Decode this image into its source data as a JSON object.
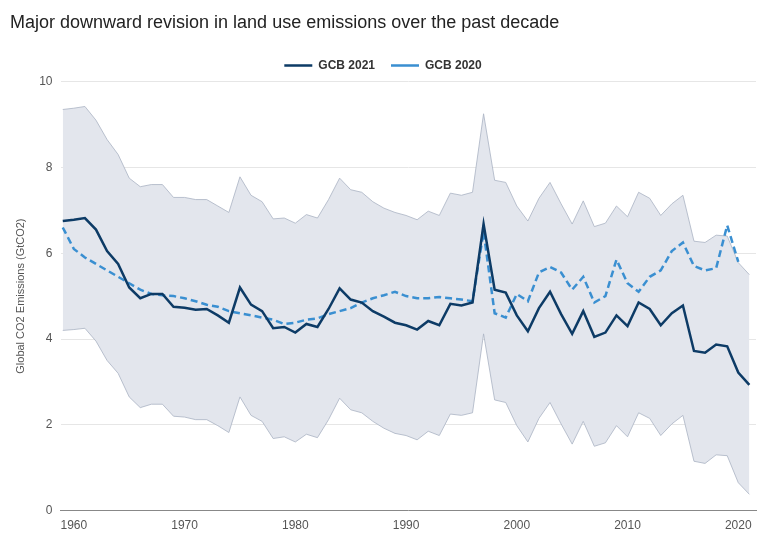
{
  "chart_data": {
    "type": "line",
    "title": "Major downward revision in land use emissions over the past decade",
    "y_label": "Global CO2 Emissions (GtCO2)",
    "x": [
      1959,
      1960,
      1961,
      1962,
      1963,
      1964,
      1965,
      1966,
      1967,
      1968,
      1969,
      1970,
      1971,
      1972,
      1973,
      1974,
      1975,
      1976,
      1977,
      1978,
      1979,
      1980,
      1981,
      1982,
      1983,
      1984,
      1985,
      1986,
      1987,
      1988,
      1989,
      1990,
      1991,
      1992,
      1993,
      1994,
      1995,
      1996,
      1997,
      1998,
      1999,
      2000,
      2001,
      2002,
      2003,
      2004,
      2005,
      2006,
      2007,
      2008,
      2009,
      2010,
      2011,
      2012,
      2013,
      2014,
      2015,
      2016,
      2017,
      2018,
      2019,
      2020,
      2021
    ],
    "series": [
      {
        "name": "GCB 2020",
        "color": "#3a8fd1",
        "line_style": "dashed",
        "values": [
          6.6,
          6.1,
          5.9,
          5.75,
          5.6,
          5.45,
          5.3,
          5.15,
          5.05,
          5.02,
          5.0,
          4.95,
          4.88,
          4.8,
          4.75,
          4.65,
          4.6,
          4.55,
          4.5,
          4.45,
          4.35,
          4.38,
          4.45,
          4.48,
          4.58,
          4.65,
          4.72,
          4.85,
          4.95,
          5.02,
          5.1,
          5.0,
          4.95,
          4.95,
          4.98,
          4.95,
          4.92,
          4.88,
          6.5,
          4.6,
          4.5,
          5.05,
          4.88,
          5.55,
          5.68,
          5.55,
          5.15,
          5.45,
          4.85,
          5.0,
          5.85,
          5.3,
          5.1,
          5.45,
          5.6,
          6.05,
          6.25,
          5.7,
          5.6,
          5.65,
          6.65,
          5.8,
          null
        ]
      },
      {
        "name": "GCB 2021",
        "color": "#0d3b66",
        "line_style": "solid",
        "values": [
          6.75,
          6.78,
          6.82,
          6.55,
          6.05,
          5.75,
          5.2,
          4.95,
          5.05,
          5.05,
          4.75,
          4.73,
          4.68,
          4.7,
          4.55,
          4.38,
          5.2,
          4.8,
          4.65,
          4.25,
          4.28,
          4.15,
          4.35,
          4.28,
          4.7,
          5.18,
          4.92,
          4.85,
          4.65,
          4.52,
          4.38,
          4.32,
          4.22,
          4.42,
          4.32,
          4.82,
          4.78,
          4.85,
          6.68,
          5.15,
          5.08,
          4.55,
          4.18,
          4.72,
          5.1,
          4.58,
          4.12,
          4.65,
          4.05,
          4.15,
          4.55,
          4.3,
          4.85,
          4.7,
          4.32,
          4.6,
          4.78,
          3.72,
          3.68,
          3.87,
          3.83,
          3.22,
          2.93
        ]
      }
    ],
    "band": {
      "color": "#e3e6ed",
      "upper": [
        9.35,
        9.38,
        9.42,
        9.1,
        8.65,
        8.3,
        7.75,
        7.55,
        7.6,
        7.6,
        7.3,
        7.3,
        7.25,
        7.25,
        7.1,
        6.95,
        7.78,
        7.35,
        7.2,
        6.8,
        6.82,
        6.7,
        6.9,
        6.82,
        7.25,
        7.75,
        7.48,
        7.42,
        7.2,
        7.05,
        6.95,
        6.88,
        6.78,
        6.98,
        6.88,
        7.4,
        7.35,
        7.42,
        9.25,
        7.7,
        7.65,
        7.1,
        6.75,
        7.28,
        7.65,
        7.15,
        6.68,
        7.22,
        6.62,
        6.7,
        7.1,
        6.85,
        7.42,
        7.28,
        6.88,
        7.15,
        7.35,
        6.28,
        6.25,
        6.42,
        6.4,
        5.78,
        5.5
      ],
      "lower": [
        4.2,
        4.22,
        4.25,
        3.95,
        3.5,
        3.2,
        2.65,
        2.4,
        2.48,
        2.48,
        2.2,
        2.18,
        2.12,
        2.12,
        1.98,
        1.82,
        2.65,
        2.22,
        2.08,
        1.68,
        1.72,
        1.6,
        1.78,
        1.7,
        2.12,
        2.62,
        2.35,
        2.28,
        2.08,
        1.92,
        1.8,
        1.75,
        1.65,
        1.85,
        1.75,
        2.25,
        2.22,
        2.28,
        4.12,
        2.58,
        2.52,
        1.98,
        1.6,
        2.15,
        2.52,
        2.02,
        1.55,
        2.08,
        1.5,
        1.58,
        1.98,
        1.72,
        2.28,
        2.15,
        1.75,
        2.02,
        2.22,
        1.15,
        1.1,
        1.3,
        1.28,
        0.65,
        0.38
      ]
    },
    "xlim": [
      1958.8,
      2021.6
    ],
    "xticks": [
      1960,
      1970,
      1980,
      1990,
      2000,
      2010,
      2020
    ],
    "ylim": [
      0,
      10
    ],
    "yticks": [
      0,
      2,
      4,
      6,
      8,
      10
    ],
    "grid": true,
    "legend": "top"
  }
}
